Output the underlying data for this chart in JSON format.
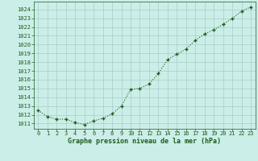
{
  "x": [
    0,
    1,
    2,
    3,
    4,
    5,
    6,
    7,
    8,
    9,
    10,
    11,
    12,
    13,
    14,
    15,
    16,
    17,
    18,
    19,
    20,
    21,
    22,
    23
  ],
  "y": [
    1012.5,
    1011.8,
    1011.5,
    1011.5,
    1011.1,
    1010.9,
    1011.3,
    1011.6,
    1012.1,
    1013.0,
    1014.9,
    1015.0,
    1015.5,
    1016.7,
    1018.3,
    1018.9,
    1019.5,
    1020.5,
    1021.2,
    1021.7,
    1022.3,
    1023.0,
    1023.8,
    1024.3
  ],
  "line_color": "#1a5c1a",
  "bg_color": "#cceee8",
  "grid_color": "#aaccca",
  "ylabel_values": [
    1011,
    1012,
    1013,
    1014,
    1015,
    1016,
    1017,
    1018,
    1019,
    1020,
    1021,
    1022,
    1023,
    1024
  ],
  "xlabel": "Graphe pression niveau de la mer (hPa)",
  "ylim": [
    1010.4,
    1024.9
  ],
  "xlim": [
    -0.5,
    23.5
  ],
  "title_color": "#1a5c1a",
  "markersize": 3.5,
  "linewidth": 0.8,
  "tick_fontsize": 5.0,
  "xlabel_fontsize": 6.0
}
